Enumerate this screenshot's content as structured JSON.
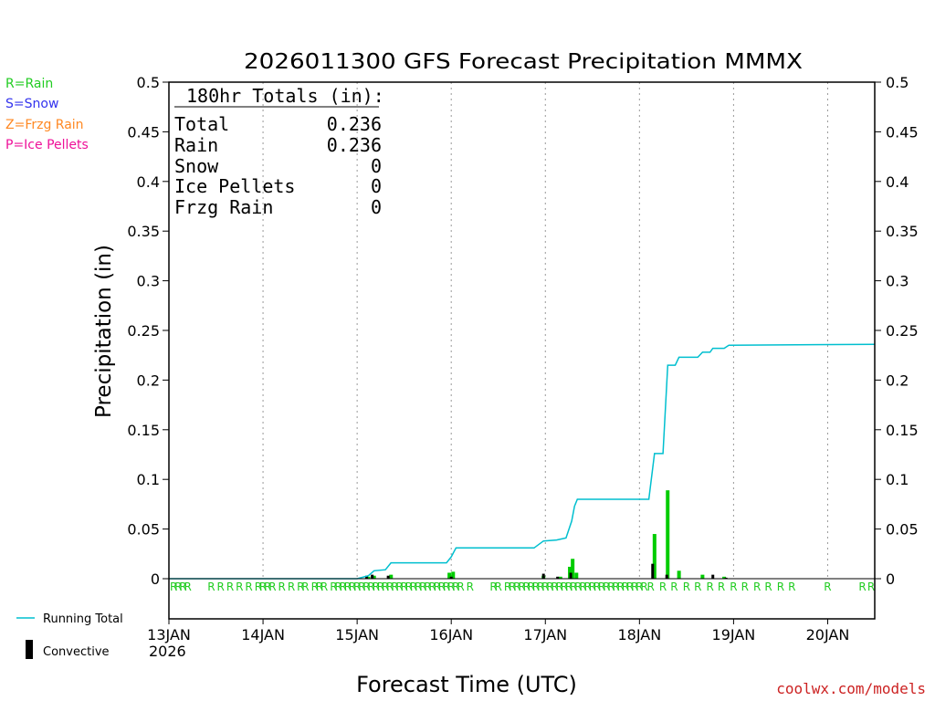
{
  "chart_data": {
    "type": "bar+line",
    "title": "2026011300 GFS Forecast Precipitation MMMX",
    "xlabel": "Forecast Time (UTC)",
    "ylabel": "Precipitation (in)",
    "ylim": [
      0,
      0.5
    ],
    "yticks": [
      "0",
      "0.05",
      "0.1",
      "0.15",
      "0.2",
      "0.25",
      "0.3",
      "0.35",
      "0.4",
      "0.45",
      "0.5"
    ],
    "ytick_values": [
      0,
      0.05,
      0.1,
      0.15,
      0.2,
      0.25,
      0.3,
      0.35,
      0.4,
      0.45,
      0.5
    ],
    "x_unit": "days since 13JAN 00Z",
    "xlim": [
      0,
      7.5
    ],
    "xticks": [
      {
        "label": "13JAN",
        "x": 0
      },
      {
        "label": "14JAN",
        "x": 1
      },
      {
        "label": "15JAN",
        "x": 2
      },
      {
        "label": "16JAN",
        "x": 3
      },
      {
        "label": "17JAN",
        "x": 4
      },
      {
        "label": "18JAN",
        "x": 5
      },
      {
        "label": "19JAN",
        "x": 6
      },
      {
        "label": "20JAN",
        "x": 7
      }
    ],
    "year_label": "2026",
    "legend_left": [
      {
        "label": "R=Rain",
        "color": "#22cc22"
      },
      {
        "label": "S=Snow",
        "color": "#3333ee"
      },
      {
        "label": "Z=Frzg Rain",
        "color": "#ff8822"
      },
      {
        "label": "P=Ice Pellets",
        "color": "#ee1199"
      }
    ],
    "legend_bottom": [
      {
        "label": "Running Total",
        "color": "#00bfcf"
      },
      {
        "label": "Convective",
        "color": "#000000"
      }
    ],
    "totals_box": {
      "header": "180hr Totals (in):",
      "rows": [
        {
          "label": "Total",
          "value": "0.236"
        },
        {
          "label": "Rain",
          "value": "0.236"
        },
        {
          "label": "Snow",
          "value": "0"
        },
        {
          "label": "Ice Pellets",
          "value": "0"
        },
        {
          "label": "Frzg Rain",
          "value": "0"
        }
      ]
    },
    "running_total": [
      [
        0,
        0
      ],
      [
        2.0,
        0
      ],
      [
        2.12,
        0.003
      ],
      [
        2.18,
        0.008
      ],
      [
        2.3,
        0.009
      ],
      [
        2.36,
        0.016
      ],
      [
        2.95,
        0.016
      ],
      [
        3.0,
        0.022
      ],
      [
        3.05,
        0.031
      ],
      [
        3.88,
        0.031
      ],
      [
        3.98,
        0.038
      ],
      [
        4.12,
        0.039
      ],
      [
        4.22,
        0.041
      ],
      [
        4.28,
        0.058
      ],
      [
        4.31,
        0.073
      ],
      [
        4.34,
        0.08
      ],
      [
        5.1,
        0.08
      ],
      [
        5.16,
        0.126
      ],
      [
        5.25,
        0.126
      ],
      [
        5.3,
        0.215
      ],
      [
        5.38,
        0.215
      ],
      [
        5.42,
        0.223
      ],
      [
        5.62,
        0.223
      ],
      [
        5.67,
        0.228
      ],
      [
        5.75,
        0.228
      ],
      [
        5.78,
        0.232
      ],
      [
        5.9,
        0.232
      ],
      [
        5.95,
        0.235
      ],
      [
        7.5,
        0.236
      ]
    ],
    "series": [
      {
        "name": "Rain",
        "color": "#00cc00",
        "points": [
          [
            2.12,
            0.002
          ],
          [
            2.18,
            0.003
          ],
          [
            2.36,
            0.004
          ],
          [
            2.98,
            0.006
          ],
          [
            3.02,
            0.007
          ],
          [
            3.98,
            0.003
          ],
          [
            4.16,
            0.002
          ],
          [
            4.26,
            0.012
          ],
          [
            4.29,
            0.02
          ],
          [
            4.33,
            0.006
          ],
          [
            5.16,
            0.045
          ],
          [
            5.3,
            0.089
          ],
          [
            5.42,
            0.008
          ],
          [
            5.67,
            0.004
          ],
          [
            5.9,
            0.002
          ]
        ]
      },
      {
        "name": "Convective",
        "color": "#000000",
        "points": [
          [
            2.1,
            0.003
          ],
          [
            2.16,
            0.004
          ],
          [
            2.33,
            0.003
          ],
          [
            3.0,
            0.002
          ],
          [
            3.98,
            0.005
          ],
          [
            4.13,
            0.002
          ],
          [
            4.27,
            0.006
          ],
          [
            5.14,
            0.015
          ],
          [
            5.29,
            0.004
          ],
          [
            5.78,
            0.004
          ],
          [
            5.92,
            0.001
          ]
        ]
      }
    ],
    "ptype_markers": {
      "letter": "R",
      "color": "#22cc22",
      "times": [
        0.05,
        0.1,
        0.15,
        0.2,
        0.45,
        0.55,
        0.65,
        0.75,
        0.85,
        0.95,
        1.0,
        1.05,
        1.1,
        1.2,
        1.3,
        1.4,
        1.45,
        1.55,
        1.6,
        1.65,
        1.75,
        1.8,
        1.85,
        1.9,
        1.95,
        2.0,
        2.05,
        2.1,
        2.15,
        2.2,
        2.25,
        2.3,
        2.35,
        2.4,
        2.45,
        2.5,
        2.55,
        2.6,
        2.65,
        2.7,
        2.75,
        2.8,
        2.85,
        2.9,
        2.95,
        3.0,
        3.05,
        3.1,
        3.2,
        3.45,
        3.5,
        3.6,
        3.65,
        3.7,
        3.75,
        3.8,
        3.85,
        3.9,
        3.95,
        4.0,
        4.05,
        4.1,
        4.15,
        4.2,
        4.25,
        4.3,
        4.35,
        4.4,
        4.45,
        4.5,
        4.55,
        4.6,
        4.65,
        4.7,
        4.75,
        4.8,
        4.85,
        4.9,
        4.95,
        5.0,
        5.05,
        5.12,
        5.25,
        5.37,
        5.5,
        5.62,
        5.75,
        5.87,
        6.0,
        6.12,
        6.25,
        6.37,
        6.5,
        6.62,
        7.0,
        7.37,
        7.5
      ]
    }
  },
  "footer": {
    "credit": "coolwx.com/models"
  }
}
